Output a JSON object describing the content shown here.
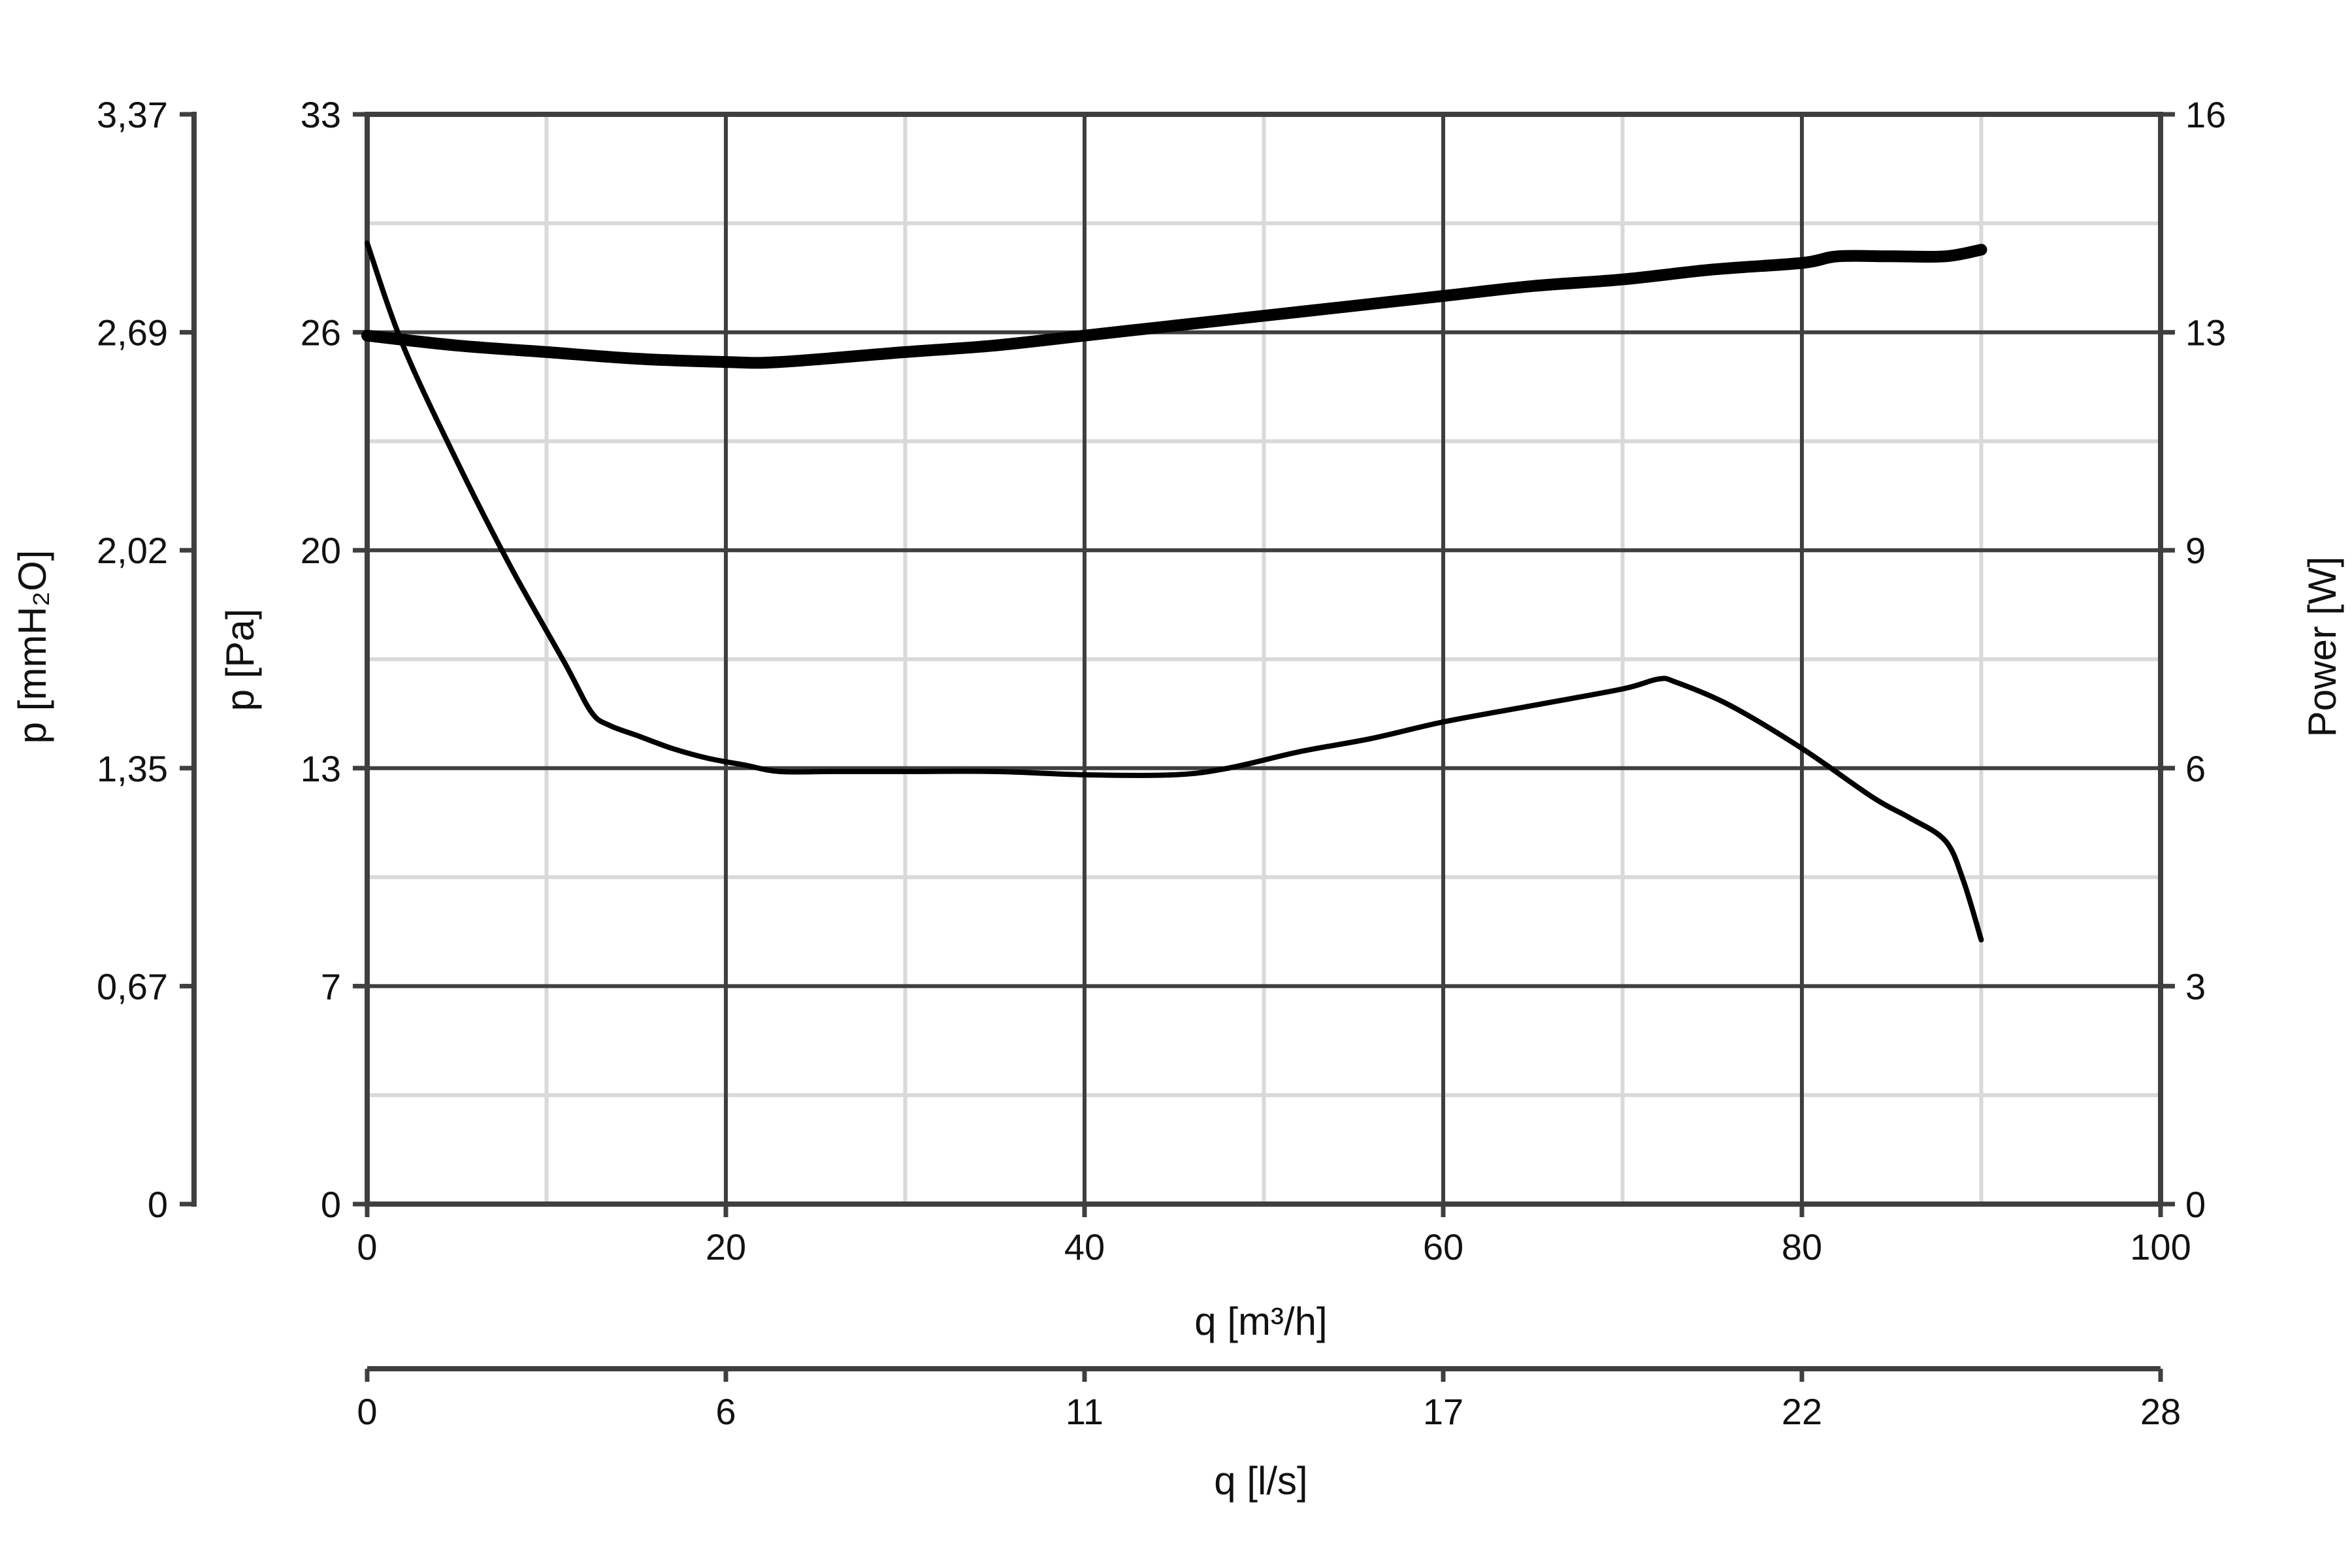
{
  "chart_data": {
    "type": "line",
    "title": "",
    "x_axis": {
      "label": "q [m³/h]",
      "range": [
        0,
        100
      ],
      "ticks": [
        "0",
        "20",
        "40",
        "60",
        "80",
        "100"
      ]
    },
    "x_axis_secondary": {
      "label": "q [l/s]",
      "ticks": [
        "0",
        "6",
        "11",
        "17",
        "22",
        "28"
      ]
    },
    "y_axis_left": {
      "label": "p [Pa]",
      "range": [
        0,
        33
      ],
      "ticks": [
        "0",
        "7",
        "13",
        "20",
        "26",
        "33"
      ]
    },
    "y_axis_far_left": {
      "label": "p [mmH₂O]",
      "ticks": [
        "0",
        "0,67",
        "1,35",
        "2,02",
        "2,69",
        "3,37"
      ]
    },
    "y_axis_right": {
      "label": "Power [W]",
      "range": [
        0,
        16
      ],
      "ticks": [
        "0",
        "3",
        "6",
        "9",
        "13",
        "16"
      ]
    },
    "grid": true,
    "grid_color": "#d9d9d9",
    "axis_color": "#3f3f3f",
    "series": [
      {
        "axis": "left",
        "stroke_weight": "thin",
        "color": "#000000",
        "points": [
          [
            0,
            29.1
          ],
          [
            2,
            26.0
          ],
          [
            5,
            22.5
          ],
          [
            8,
            19.3
          ],
          [
            11,
            16.4
          ],
          [
            12.5,
            14.9
          ],
          [
            13.5,
            14.5
          ],
          [
            15,
            14.2
          ],
          [
            17,
            13.8
          ],
          [
            19,
            13.5
          ],
          [
            21,
            13.3
          ],
          [
            23,
            13.1
          ],
          [
            26,
            13.1
          ],
          [
            30,
            13.1
          ],
          [
            35,
            13.1
          ],
          [
            40,
            13.0
          ],
          [
            45,
            13.0
          ],
          [
            48,
            13.2
          ],
          [
            52,
            13.7
          ],
          [
            56,
            14.1
          ],
          [
            60,
            14.6
          ],
          [
            65,
            15.1
          ],
          [
            70,
            15.6
          ],
          [
            72,
            15.9
          ],
          [
            73,
            15.8
          ],
          [
            76,
            15.1
          ],
          [
            80,
            13.8
          ],
          [
            84,
            12.3
          ],
          [
            86,
            11.7
          ],
          [
            88,
            11.0
          ],
          [
            89,
            9.8
          ],
          [
            90,
            8.0
          ]
        ]
      },
      {
        "axis": "left",
        "stroke_weight": "thick",
        "color": "#000000",
        "points": [
          [
            0,
            26.3
          ],
          [
            5,
            26.0
          ],
          [
            10,
            25.8
          ],
          [
            15,
            25.6
          ],
          [
            20,
            25.5
          ],
          [
            23,
            25.5
          ],
          [
            30,
            25.8
          ],
          [
            35,
            26.0
          ],
          [
            40,
            26.3
          ],
          [
            45,
            26.6
          ],
          [
            50,
            26.9
          ],
          [
            55,
            27.2
          ],
          [
            60,
            27.5
          ],
          [
            65,
            27.8
          ],
          [
            70,
            28.0
          ],
          [
            75,
            28.3
          ],
          [
            80,
            28.5
          ],
          [
            82,
            28.7
          ],
          [
            85,
            28.7
          ],
          [
            88,
            28.7
          ],
          [
            90,
            28.9
          ]
        ]
      }
    ]
  }
}
